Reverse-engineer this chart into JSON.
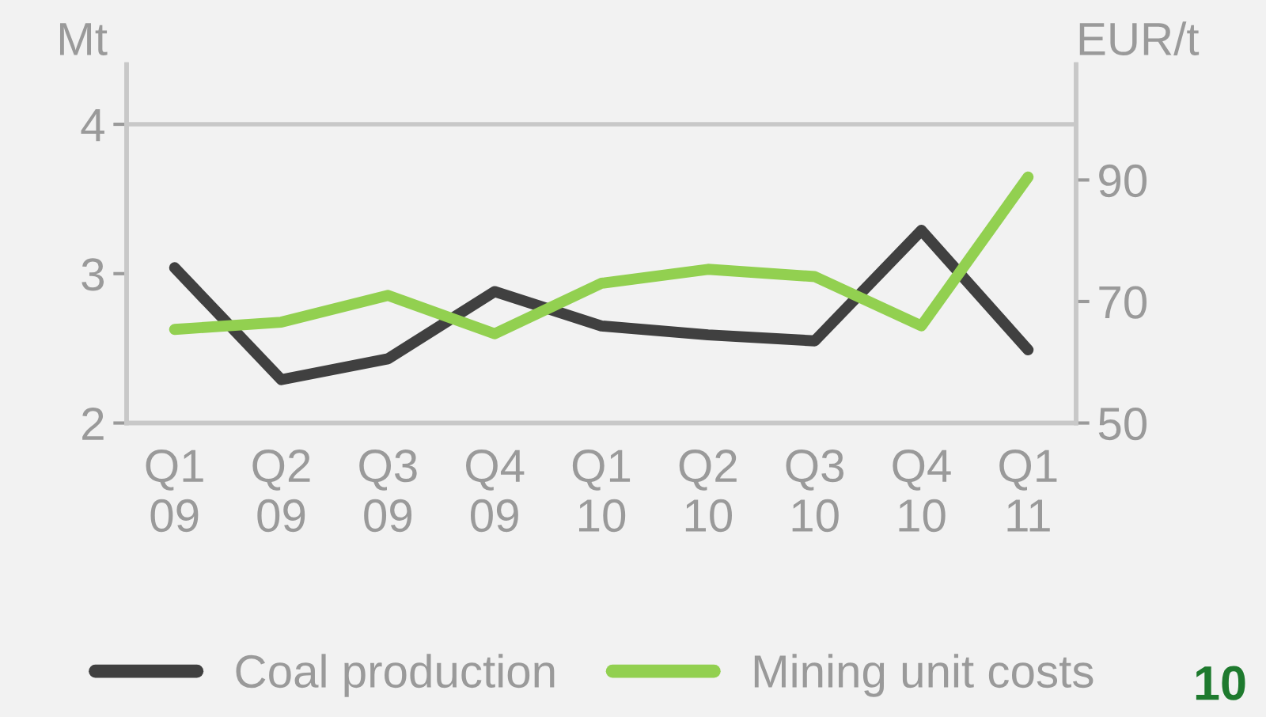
{
  "chart_data": {
    "type": "line",
    "categories": [
      "Q1\n09",
      "Q2\n09",
      "Q3\n09",
      "Q4\n09",
      "Q1\n10",
      "Q2\n10",
      "Q3\n10",
      "Q4\n10",
      "Q1\n11"
    ],
    "series": [
      {
        "name": "Coal production",
        "color": "#404040",
        "values": [
          3.04,
          2.29,
          2.43,
          2.88,
          2.65,
          2.59,
          2.55,
          3.29,
          2.49
        ]
      },
      {
        "name": "Mining unit costs",
        "color": "#92d050",
        "axis": "y2",
        "values": [
          65.4,
          66.6,
          71,
          64.7,
          73,
          75.3,
          74.1,
          66,
          90.5
        ]
      }
    ],
    "ylabel": "Mt",
    "y2label": "EUR/t",
    "ylim": [
      2,
      4.4
    ],
    "yticks": [
      2,
      3,
      4
    ],
    "y2lim": [
      50,
      109
    ],
    "y2ticks": [
      50,
      70,
      90
    ],
    "ref_lines": [
      {
        "axis": "y",
        "value": 4,
        "color": "#c8c8c8"
      }
    ],
    "legend": "bottom",
    "marker": "none",
    "line_style": "solid",
    "annotations": [
      "10"
    ]
  }
}
